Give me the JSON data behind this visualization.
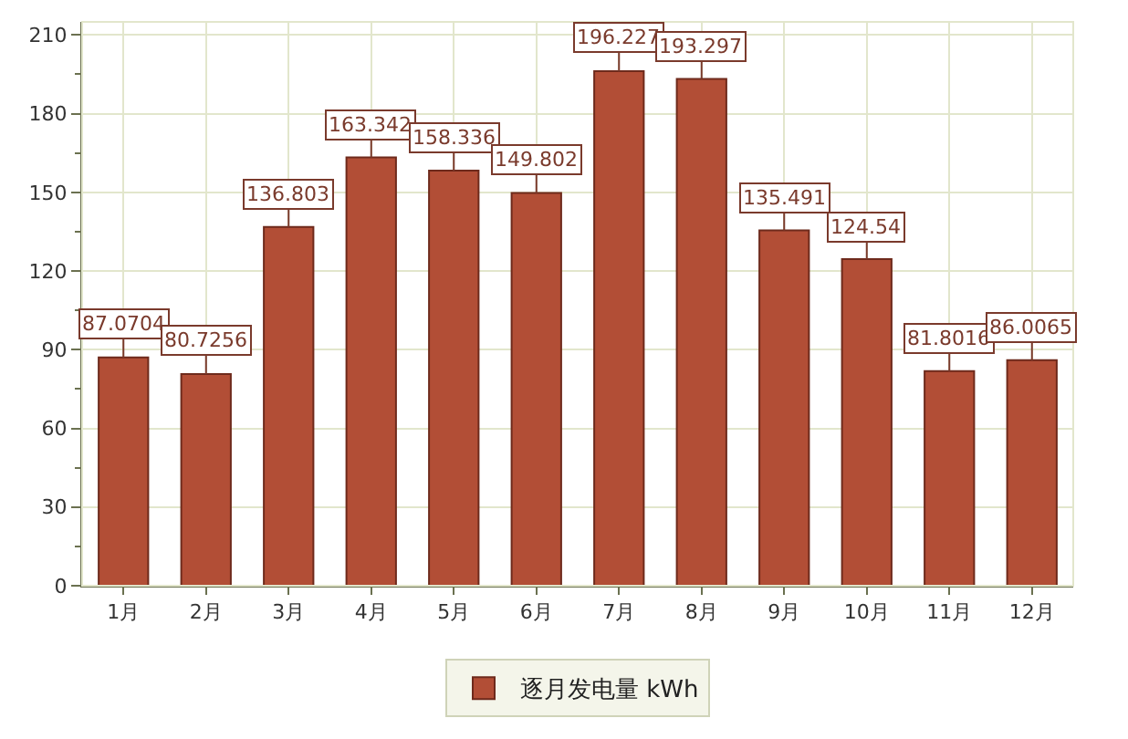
{
  "chart_data": {
    "type": "bar",
    "categories": [
      "1月",
      "2月",
      "3月",
      "4月",
      "5月",
      "6月",
      "7月",
      "8月",
      "9月",
      "10月",
      "11月",
      "12月"
    ],
    "series": [
      {
        "name": "逐月发电量 kWh",
        "color": "#b24e36",
        "values": [
          87.0704,
          80.7256,
          136.803,
          163.342,
          158.336,
          149.802,
          196.227,
          193.297,
          135.491,
          124.54,
          81.8016,
          86.0065
        ]
      }
    ],
    "ylim": [
      0,
      215
    ],
    "yticks": [
      0,
      30,
      60,
      90,
      120,
      150,
      180,
      210
    ],
    "grid": true,
    "legend": "bottom",
    "data_labels": true
  }
}
